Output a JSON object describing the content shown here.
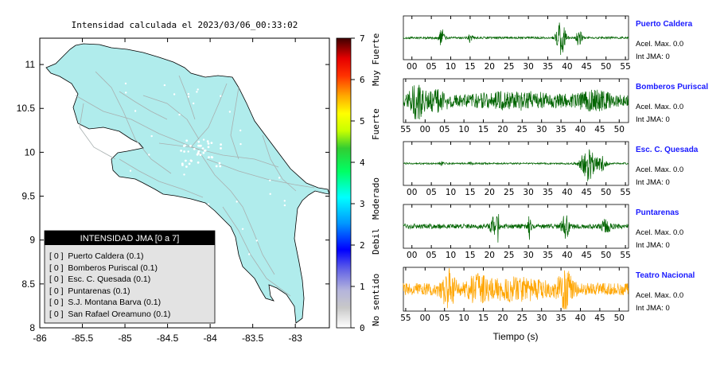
{
  "title": "Intensidad calculada el 2023/03/06_00:33:02",
  "colorbar": {
    "ticks": [
      "0",
      "1",
      "2",
      "3",
      "4",
      "5",
      "6",
      "7"
    ],
    "labels": [
      "No sentido",
      "Debil",
      "Moderado",
      "Fuerte",
      "Muy Fuerte"
    ]
  },
  "map": {
    "x_ticks": [
      "-86",
      "-85.5",
      "-85",
      "-84.5",
      "-84",
      "-83.5",
      "-83"
    ],
    "y_ticks": [
      "8",
      "8.5",
      "9",
      "9.5",
      "10",
      "10.5",
      "11"
    ],
    "land_color": "#b0ecec",
    "legend": {
      "header": "INTENSIDAD JMA [0 a 7]",
      "items": [
        "[ 0 ]  Puerto Caldera (0.1)",
        "[ 0 ]  Bomberos Puriscal (0.1)",
        "[ 0 ]  Esc. C. Quesada (0.1)",
        "[ 0 ]  Puntarenas (0.1)",
        "[ 0 ]  S.J. Montana Barva (0.1)",
        "[ 0 ]  San Rafael Oreamuno (0.1)"
      ]
    }
  },
  "chart_data": [
    {
      "type": "heatmap",
      "title": "Intensidad calculada el 2023/03/06_00:33:02",
      "xlim": [
        -86,
        -82.6
      ],
      "ylim": [
        8,
        11.3
      ],
      "colorbar_range": [
        0,
        7
      ],
      "legend_title": "INTENSIDAD JMA [0 a 7]",
      "stations": [
        {
          "name": "Puerto Caldera",
          "jma": 0,
          "value": 0.1
        },
        {
          "name": "Bomberos Puriscal",
          "jma": 0,
          "value": 0.1
        },
        {
          "name": "Esc. C. Quesada",
          "jma": 0,
          "value": 0.1
        },
        {
          "name": "Puntarenas",
          "jma": 0,
          "value": 0.1
        },
        {
          "name": "S.J. Montana Barva",
          "jma": 0,
          "value": 0.1
        },
        {
          "name": "San Rafael Oreamuno",
          "jma": 0,
          "value": 0.1
        }
      ]
    },
    {
      "type": "line",
      "xlabel": "Tiempo (s)",
      "series": [
        {
          "name": "Puerto Caldera",
          "color": "#006400",
          "ticks": [
            "00",
            "05",
            "10",
            "15",
            "20",
            "25",
            "30",
            "35",
            "40",
            "45",
            "50",
            "55"
          ],
          "tick_start_s": 0,
          "acel": "Acel. Max. 0.0",
          "jma": "Int JMA: 0"
        },
        {
          "name": "Bomberos Puriscal",
          "color": "#006400",
          "ticks": [
            "55",
            "00",
            "05",
            "10",
            "15",
            "20",
            "25",
            "30",
            "35",
            "40",
            "45",
            "50"
          ],
          "tick_start_s": -5,
          "acel": "Acel. Max. 0.0",
          "jma": "Int JMA: 0"
        },
        {
          "name": "Esc. C. Quesada",
          "color": "#006400",
          "ticks": [
            "00",
            "05",
            "10",
            "15",
            "20",
            "25",
            "30",
            "35",
            "40",
            "45",
            "50",
            "55"
          ],
          "tick_start_s": 0,
          "acel": "Acel. Max. 0.0",
          "jma": "Int JMA: 0"
        },
        {
          "name": "Puntarenas",
          "color": "#006400",
          "ticks": [
            "00",
            "05",
            "10",
            "15",
            "20",
            "25",
            "30",
            "35",
            "40",
            "45",
            "50",
            "55"
          ],
          "tick_start_s": 0,
          "acel": "Acel. Max. 0.0",
          "jma": "Int JMA: 0"
        },
        {
          "name": "Teatro Nacional",
          "color": "#ffa500",
          "ticks": [
            "55",
            "00",
            "05",
            "10",
            "15",
            "20",
            "25",
            "30",
            "35",
            "40",
            "45",
            "50"
          ],
          "tick_start_s": -5,
          "acel": "Acel. Max. 0.0",
          "jma": "Int JMA: 0"
        }
      ]
    }
  ]
}
